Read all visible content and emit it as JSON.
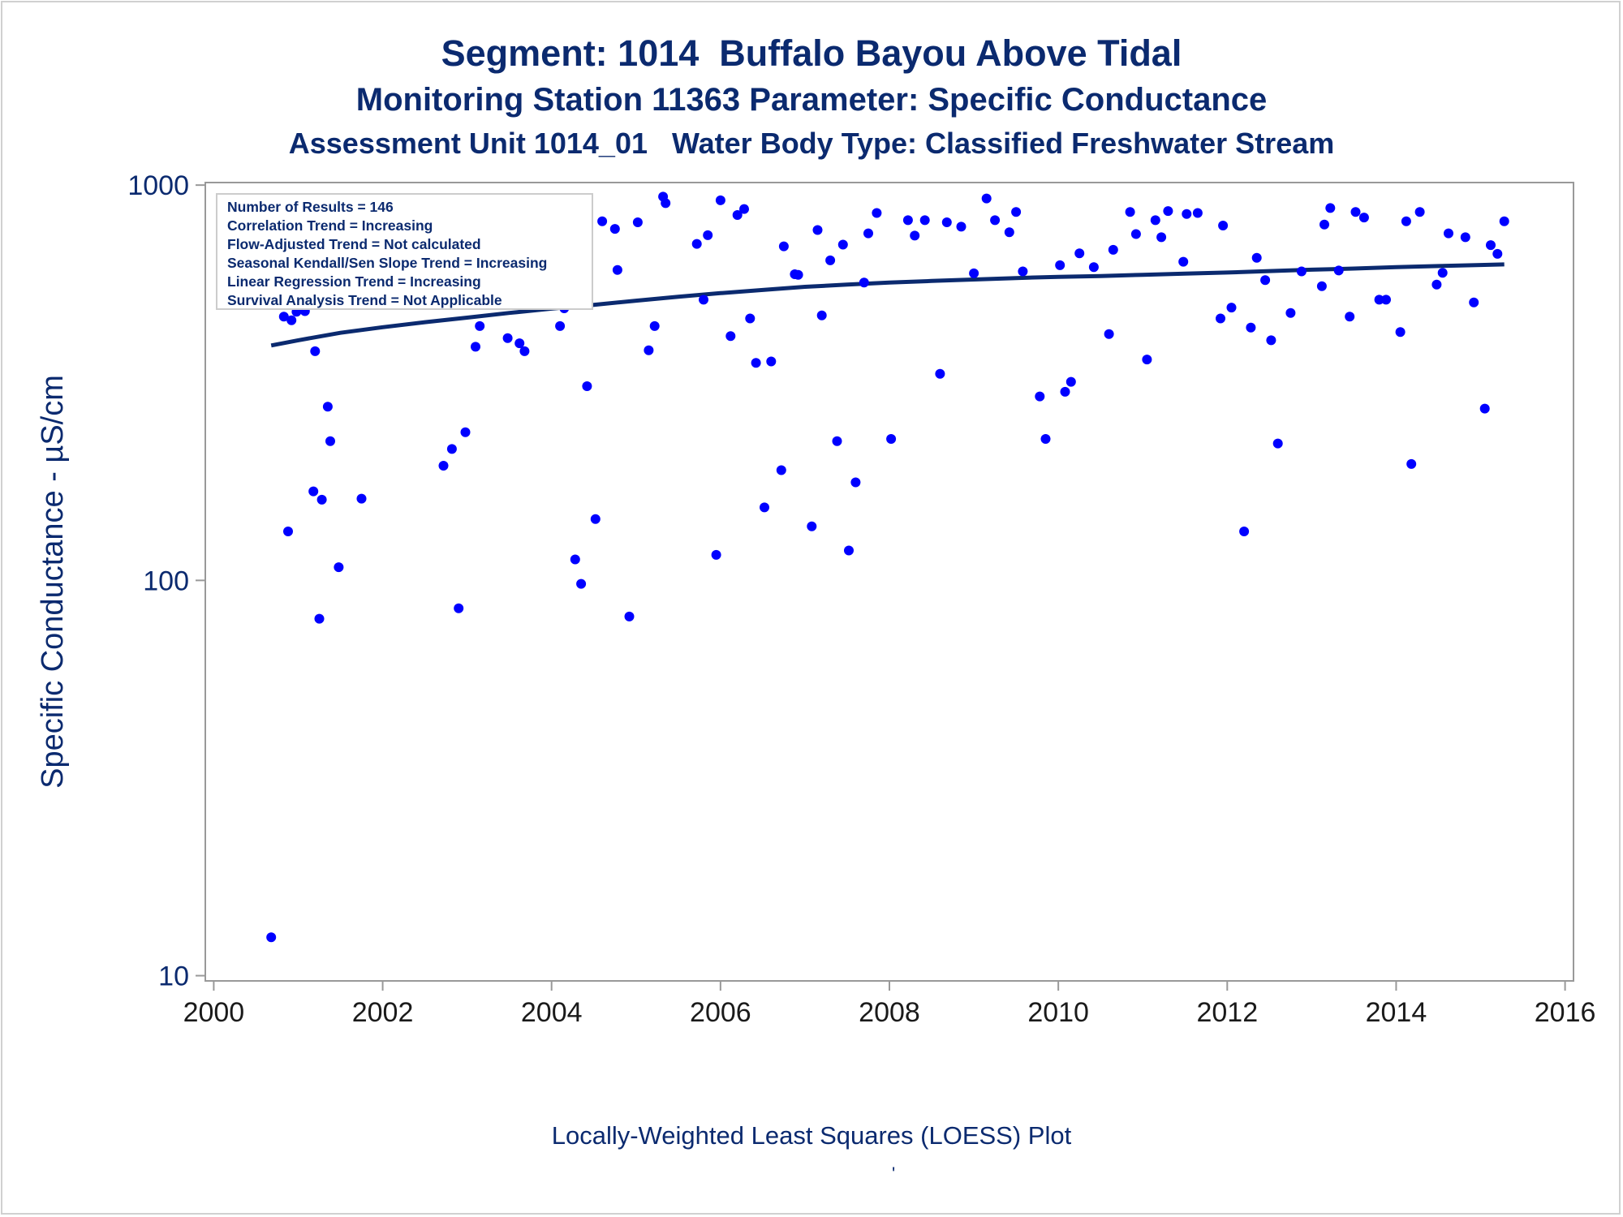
{
  "titles": {
    "line1": "Segment: 1014  Buffalo Bayou Above Tidal",
    "line2": "Monitoring Station 11363 Parameter: Specific Conductance",
    "line3": "Assessment Unit 1014_01   Water Body Type: Classified Freshwater Stream"
  },
  "footnote": "Locally-Weighted Least Squares (LOESS) Plot",
  "stray_mark": "'",
  "legend": [
    "Number of Results = 146",
    "Correlation Trend = Increasing",
    "Flow-Adjusted Trend = Not calculated",
    "Seasonal Kendall/Sen Slope Trend = Increasing",
    "Linear Regression Trend = Increasing",
    "Survival Analysis Trend = Not Applicable"
  ],
  "colors": {
    "title": "#0b2a6f",
    "points": "#0000ff",
    "trend_line": "#0b2a6f",
    "axis": "#999999"
  },
  "chart_data": {
    "type": "scatter",
    "ylabel": "Specific Conductance -  µS/cm",
    "xlabel": "",
    "x_scale": "linear",
    "y_scale": "log",
    "xlim": [
      1999.9,
      2016.1
    ],
    "ylim": [
      9.7,
      1015
    ],
    "x_ticks": [
      2000,
      2002,
      2004,
      2006,
      2008,
      2010,
      2012,
      2014,
      2016
    ],
    "x_tick_labels": [
      "2000",
      "2002",
      "2004",
      "2006",
      "2008",
      "2010",
      "2012",
      "2014",
      "2016"
    ],
    "y_ticks": [
      10,
      100,
      1000
    ],
    "y_tick_labels": [
      "10",
      "100",
      "1000"
    ],
    "grid": false,
    "legend_position": "top-left",
    "series": [
      {
        "kind": "points",
        "points": [
          [
            2000.68,
            12.5
          ],
          [
            2000.75,
            653
          ],
          [
            2000.77,
            820
          ],
          [
            2000.83,
            465
          ],
          [
            2000.88,
            133
          ],
          [
            2000.92,
            455
          ],
          [
            2000.95,
            500
          ],
          [
            2000.98,
            478
          ],
          [
            2001.02,
            488
          ],
          [
            2001.08,
            480
          ],
          [
            2001.12,
            618
          ],
          [
            2001.18,
            168
          ],
          [
            2001.2,
            380
          ],
          [
            2001.25,
            80
          ],
          [
            2001.28,
            160
          ],
          [
            2001.35,
            275
          ],
          [
            2001.38,
            225
          ],
          [
            2001.48,
            108
          ],
          [
            2001.5,
            505
          ],
          [
            2001.55,
            780
          ],
          [
            2001.58,
            735
          ],
          [
            2001.62,
            707
          ],
          [
            2001.72,
            550
          ],
          [
            2001.75,
            161
          ],
          [
            2002.72,
            195
          ],
          [
            2002.82,
            215
          ],
          [
            2002.9,
            85
          ],
          [
            2002.98,
            237
          ],
          [
            2003.1,
            390
          ],
          [
            2003.15,
            440
          ],
          [
            2003.25,
            820
          ],
          [
            2003.35,
            735
          ],
          [
            2003.48,
            410
          ],
          [
            2003.52,
            590
          ],
          [
            2003.62,
            398
          ],
          [
            2003.68,
            380
          ],
          [
            2003.8,
            620
          ],
          [
            2003.85,
            675
          ],
          [
            2003.95,
            540
          ],
          [
            2004.02,
            568
          ],
          [
            2004.1,
            440
          ],
          [
            2004.15,
            488
          ],
          [
            2004.28,
            113
          ],
          [
            2004.35,
            98
          ],
          [
            2004.42,
            310
          ],
          [
            2004.52,
            143
          ],
          [
            2004.6,
            810
          ],
          [
            2004.75,
            775
          ],
          [
            2004.78,
            610
          ],
          [
            2004.92,
            81
          ],
          [
            2005.02,
            805
          ],
          [
            2005.15,
            382
          ],
          [
            2005.22,
            440
          ],
          [
            2005.32,
            935
          ],
          [
            2005.35,
            900
          ],
          [
            2005.72,
            710
          ],
          [
            2005.8,
            513
          ],
          [
            2005.85,
            747
          ],
          [
            2005.95,
            116
          ],
          [
            2006.0,
            915
          ],
          [
            2006.12,
            415
          ],
          [
            2006.2,
            840
          ],
          [
            2006.28,
            870
          ],
          [
            2006.35,
            460
          ],
          [
            2006.42,
            355
          ],
          [
            2006.52,
            153
          ],
          [
            2006.6,
            358
          ],
          [
            2006.72,
            190
          ],
          [
            2006.75,
            700
          ],
          [
            2006.88,
            595
          ],
          [
            2006.92,
            593
          ],
          [
            2007.08,
            137
          ],
          [
            2007.15,
            770
          ],
          [
            2007.2,
            468
          ],
          [
            2007.3,
            645
          ],
          [
            2007.38,
            225
          ],
          [
            2007.45,
            707
          ],
          [
            2007.52,
            119
          ],
          [
            2007.6,
            177
          ],
          [
            2007.7,
            567
          ],
          [
            2007.75,
            755
          ],
          [
            2007.85,
            850
          ],
          [
            2008.02,
            228
          ],
          [
            2008.22,
            815
          ],
          [
            2008.3,
            745
          ],
          [
            2008.42,
            815
          ],
          [
            2008.6,
            333
          ],
          [
            2008.68,
            805
          ],
          [
            2008.85,
            785
          ],
          [
            2009.0,
            598
          ],
          [
            2009.15,
            925
          ],
          [
            2009.25,
            815
          ],
          [
            2009.42,
            760
          ],
          [
            2009.5,
            855
          ],
          [
            2009.58,
            605
          ],
          [
            2009.78,
            292
          ],
          [
            2009.85,
            228
          ],
          [
            2010.02,
            627
          ],
          [
            2010.08,
            300
          ],
          [
            2010.15,
            318
          ],
          [
            2010.25,
            672
          ],
          [
            2010.42,
            620
          ],
          [
            2010.6,
            420
          ],
          [
            2010.65,
            686
          ],
          [
            2010.85,
            855
          ],
          [
            2010.92,
            752
          ],
          [
            2011.05,
            362
          ],
          [
            2011.15,
            815
          ],
          [
            2011.22,
            738
          ],
          [
            2011.3,
            860
          ],
          [
            2011.48,
            640
          ],
          [
            2011.52,
            845
          ],
          [
            2011.65,
            850
          ],
          [
            2011.92,
            460
          ],
          [
            2011.95,
            790
          ],
          [
            2012.05,
            490
          ],
          [
            2012.2,
            133
          ],
          [
            2012.28,
            436
          ],
          [
            2012.35,
            655
          ],
          [
            2012.45,
            575
          ],
          [
            2012.52,
            405
          ],
          [
            2012.6,
            222
          ],
          [
            2012.75,
            475
          ],
          [
            2012.88,
            605
          ],
          [
            2013.12,
            555
          ],
          [
            2013.15,
            795
          ],
          [
            2013.22,
            875
          ],
          [
            2013.32,
            608
          ],
          [
            2013.45,
            465
          ],
          [
            2013.52,
            855
          ],
          [
            2013.62,
            828
          ],
          [
            2013.8,
            513
          ],
          [
            2013.88,
            513
          ],
          [
            2014.05,
            425
          ],
          [
            2014.12,
            810
          ],
          [
            2014.18,
            197
          ],
          [
            2014.28,
            855
          ],
          [
            2014.48,
            560
          ],
          [
            2014.55,
            600
          ],
          [
            2014.62,
            755
          ],
          [
            2014.82,
            738
          ],
          [
            2014.92,
            505
          ],
          [
            2015.05,
            272
          ],
          [
            2015.12,
            705
          ],
          [
            2015.2,
            670
          ],
          [
            2015.28,
            810
          ]
        ]
      },
      {
        "kind": "loess_line",
        "points": [
          [
            2000.68,
            393
          ],
          [
            2001.0,
            405
          ],
          [
            2001.5,
            423
          ],
          [
            2002.0,
            437
          ],
          [
            2002.5,
            450
          ],
          [
            2003.0,
            462
          ],
          [
            2003.5,
            475
          ],
          [
            2004.0,
            487
          ],
          [
            2004.5,
            498
          ],
          [
            2005.0,
            510
          ],
          [
            2005.5,
            522
          ],
          [
            2006.0,
            533
          ],
          [
            2006.5,
            543
          ],
          [
            2007.0,
            553
          ],
          [
            2007.5,
            560
          ],
          [
            2008.0,
            567
          ],
          [
            2008.5,
            572
          ],
          [
            2009.0,
            577
          ],
          [
            2009.5,
            582
          ],
          [
            2010.0,
            586
          ],
          [
            2010.5,
            589
          ],
          [
            2011.0,
            593
          ],
          [
            2011.5,
            597
          ],
          [
            2012.0,
            601
          ],
          [
            2012.5,
            606
          ],
          [
            2013.0,
            611
          ],
          [
            2013.5,
            615
          ],
          [
            2014.0,
            620
          ],
          [
            2014.5,
            624
          ],
          [
            2015.0,
            628
          ],
          [
            2015.28,
            630
          ]
        ]
      }
    ]
  }
}
